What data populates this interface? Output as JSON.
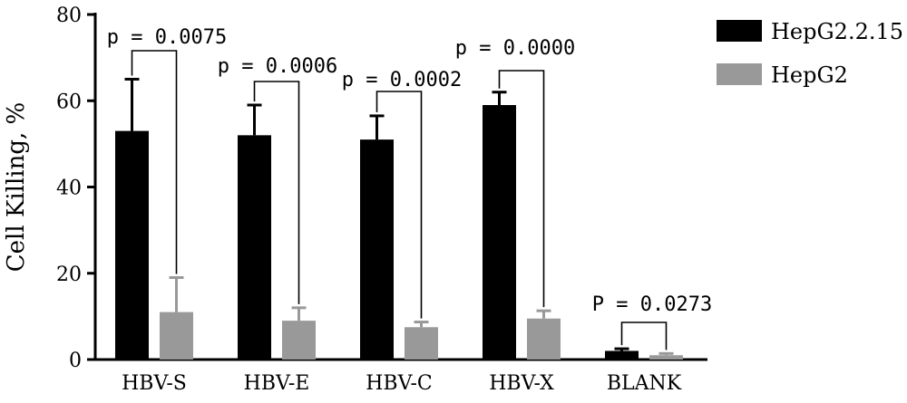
{
  "chart_data": {
    "type": "bar",
    "title": "",
    "xlabel": "",
    "ylabel": "Cell Killing, %",
    "ylim": [
      0,
      80
    ],
    "yticks": [
      0,
      20,
      40,
      60,
      80
    ],
    "categories": [
      "HBV-S",
      "HBV-E",
      "HBV-C",
      "HBV-X",
      "BLANK"
    ],
    "series": [
      {
        "name": "HepG2.2.15",
        "color": "#000000",
        "values": [
          53,
          52,
          51,
          59,
          2
        ],
        "errors": [
          12,
          7,
          5.5,
          3,
          0.5
        ]
      },
      {
        "name": "HepG2",
        "color": "#999999",
        "values": [
          11,
          9,
          7.5,
          9.5,
          1
        ],
        "errors": [
          8,
          3,
          1.2,
          1.8,
          0.4
        ]
      }
    ],
    "annotations": [
      "p = 0.0075",
      "p = 0.0006",
      "p = 0.0002",
      "p = 0.0000",
      "P = 0.0273"
    ],
    "legend_position": "top-right",
    "grid": false
  }
}
